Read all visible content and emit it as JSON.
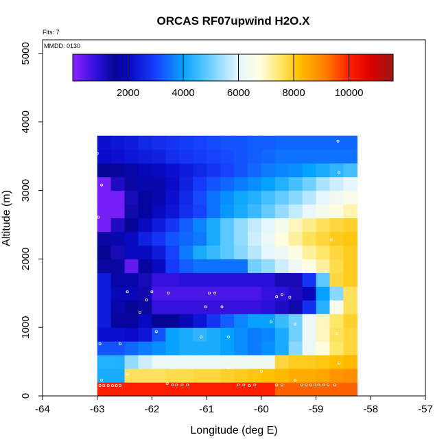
{
  "chart_data": {
    "type": "heatmap",
    "title": "ORCAS RF07upwind H2O.X",
    "xlabel": "Longitude (deg E)",
    "ylabel": "Altitude (m)",
    "xlim": [
      -64,
      -57
    ],
    "ylim": [
      0,
      5200
    ],
    "x_ticks": [
      -64,
      -63,
      -62,
      -61,
      -60,
      -59,
      -58,
      -57
    ],
    "y_ticks": [
      0,
      1000,
      2000,
      3000,
      4000,
      5000
    ],
    "annotations": {
      "flights": "Flts: 7",
      "date": "MMDD: 0130"
    },
    "colorbar": {
      "min": 0,
      "max": 11600,
      "ticks": [
        2000,
        4000,
        6000,
        8000,
        10000
      ],
      "stops": [
        {
          "v": 0,
          "c": "#8b22ff"
        },
        {
          "v": 900,
          "c": "#2a10d8"
        },
        {
          "v": 1500,
          "c": "#050596"
        },
        {
          "v": 2100,
          "c": "#0a0ac8"
        },
        {
          "v": 3000,
          "c": "#1840ff"
        },
        {
          "v": 4000,
          "c": "#05a2ff"
        },
        {
          "v": 5000,
          "c": "#70d0ff"
        },
        {
          "v": 6000,
          "c": "#e6f6ff"
        },
        {
          "v": 6800,
          "c": "#fffce0"
        },
        {
          "v": 7500,
          "c": "#ffe76a"
        },
        {
          "v": 8200,
          "c": "#ffc000"
        },
        {
          "v": 9200,
          "c": "#ff7a00"
        },
        {
          "v": 10000,
          "c": "#ff1f00"
        },
        {
          "v": 10800,
          "c": "#dd0000"
        },
        {
          "v": 11600,
          "c": "#9a1818"
        }
      ]
    },
    "grid": {
      "lon_step": 0.25,
      "alt_step": 200,
      "rows": [
        {
          "alt": 0,
          "lon0": -63.0,
          "values": [
            10000,
            10000,
            10000,
            10000,
            10000,
            10000,
            10000,
            10000,
            10000,
            10000,
            10000,
            10000,
            10000,
            9400,
            9400,
            9400,
            9400,
            9400,
            9400
          ]
        },
        {
          "alt": 200,
          "lon0": -63.0,
          "values": [
            4200,
            4200,
            7600,
            7600,
            7600,
            7700,
            7700,
            7800,
            7800,
            7900,
            8000,
            8100,
            8200,
            8300,
            8500,
            8500,
            8600,
            8800,
            8900
          ]
        },
        {
          "alt": 400,
          "lon0": -63.0,
          "values": [
            4300,
            4300,
            5300,
            5800,
            6200,
            6200,
            6200,
            6200,
            6200,
            6300,
            6300,
            6300,
            6300,
            7800,
            8000,
            8000,
            8100,
            8200,
            8300
          ]
        },
        {
          "alt": 600,
          "lon0": -63.25,
          "values": [
            null,
            3200,
            3200,
            3400,
            3600,
            3800,
            4000,
            4200,
            4200,
            4200,
            4000,
            3800,
            3600,
            3800,
            4200,
            5200,
            6200,
            6800,
            7500,
            7800
          ]
        },
        {
          "alt": 800,
          "lon0": -63.25,
          "values": [
            null,
            2200,
            2200,
            2100,
            2300,
            3200,
            4000,
            4200,
            4400,
            4200,
            4000,
            3800,
            3600,
            3700,
            4200,
            5000,
            6200,
            7000,
            7600,
            7800
          ]
        },
        {
          "alt": 1000,
          "lon0": -63.25,
          "values": [
            null,
            2400,
            1600,
            1600,
            2000,
            1500,
            1500,
            1900,
            2300,
            2800,
            3300,
            3700,
            4000,
            4000,
            4500,
            5000,
            6200,
            7000,
            7500,
            7900
          ]
        },
        {
          "alt": 1200,
          "lon0": -63.25,
          "values": [
            null,
            2400,
            1700,
            1500,
            1400,
            800,
            800,
            800,
            800,
            800,
            800,
            800,
            800,
            900,
            1100,
            1300,
            2700,
            4300,
            6600,
            7600
          ]
        },
        {
          "alt": 1400,
          "lon0": -63.25,
          "values": [
            null,
            2400,
            1900,
            1900,
            1300,
            600,
            600,
            600,
            600,
            600,
            600,
            600,
            600,
            800,
            900,
            1100,
            1900,
            4000,
            5200,
            7600
          ]
        },
        {
          "alt": 1600,
          "lon0": -63.25,
          "values": [
            null,
            2400,
            1700,
            1700,
            1200,
            800,
            800,
            900,
            900,
            900,
            900,
            900,
            900,
            900,
            1200,
            1200,
            2800,
            4800,
            7800,
            8000
          ]
        },
        {
          "alt": 1800,
          "lon0": -63.25,
          "values": [
            null,
            1400,
            1400,
            400,
            1600,
            2000,
            2900,
            3300,
            3500,
            3500,
            3500,
            3500,
            5000,
            5300,
            5800,
            6300,
            6800,
            7200,
            7700,
            8000
          ]
        },
        {
          "alt": 2000,
          "lon0": -63.25,
          "values": [
            null,
            1500,
            1200,
            2000,
            2000,
            2400,
            3000,
            3600,
            4200,
            4500,
            4800,
            5200,
            5600,
            6000,
            6300,
            6700,
            7200,
            7500,
            7800,
            8000
          ]
        },
        {
          "alt": 2200,
          "lon0": -63.0,
          "values": [
            1400,
            1800,
            2000,
            2500,
            2800,
            3200,
            3400,
            3600,
            4200,
            4800,
            5300,
            5800,
            6200,
            6800,
            7200,
            7600,
            7800,
            8000,
            8100
          ]
        },
        {
          "alt": 2400,
          "lon0": -63.0,
          "values": [
            200,
            1100,
            1500,
            2000,
            2400,
            2800,
            3300,
            3700,
            4200,
            4800,
            5300,
            5700,
            6000,
            6500,
            7000,
            7300,
            7600,
            7800,
            7900
          ]
        },
        {
          "alt": 2600,
          "lon0": -63.0,
          "values": [
            200,
            200,
            1300,
            1600,
            2000,
            2300,
            2700,
            3000,
            3500,
            3900,
            4200,
            4500,
            4900,
            5300,
            5700,
            6100,
            6500,
            6800,
            7100
          ]
        },
        {
          "alt": 2800,
          "lon0": -63.0,
          "values": [
            200,
            200,
            1200,
            1600,
            1800,
            2200,
            2600,
            3100,
            3500,
            3800,
            4100,
            4300,
            4600,
            4900,
            5200,
            5600,
            6000,
            6400,
            6600
          ]
        },
        {
          "alt": 3000,
          "lon0": -63.0,
          "values": [
            200,
            1100,
            1400,
            1800,
            1800,
            2100,
            2500,
            2900,
            3200,
            3400,
            3600,
            3800,
            4000,
            4300,
            4600,
            5000,
            5500,
            5800,
            6000
          ]
        },
        {
          "alt": 3200,
          "lon0": -63.0,
          "values": [
            1500,
            1600,
            1700,
            1900,
            2000,
            2200,
            2400,
            2600,
            2800,
            3000,
            3200,
            3400,
            3600,
            3700,
            3800,
            4000,
            4200,
            4400,
            4600
          ]
        },
        {
          "alt": 3400,
          "lon0": -63.0,
          "values": [
            2100,
            2200,
            2300,
            2400,
            2500,
            2700,
            2800,
            2900,
            3000,
            3100,
            3200,
            3300,
            3400,
            3500,
            3500,
            3500,
            3500,
            3500,
            3500
          ]
        },
        {
          "alt": 3600,
          "lon0": -63.0,
          "values": [
            2200,
            2300,
            2400,
            2600,
            2700,
            2800,
            2900,
            3000,
            3100,
            3200,
            3200,
            3300,
            3300,
            3400,
            3400,
            3400,
            3400,
            3400,
            3400
          ]
        }
      ]
    },
    "samples": [
      [
        -63.02,
        100
      ],
      [
        -62.95,
        150
      ],
      [
        -62.88,
        150
      ],
      [
        -62.8,
        150
      ],
      [
        -62.72,
        150
      ],
      [
        -62.65,
        150
      ],
      [
        -62.58,
        150
      ],
      [
        -62.92,
        230
      ],
      [
        -61.72,
        180
      ],
      [
        -61.62,
        160
      ],
      [
        -61.55,
        160
      ],
      [
        -61.45,
        160
      ],
      [
        -61.35,
        160
      ],
      [
        -60.42,
        160
      ],
      [
        -60.32,
        160
      ],
      [
        -60.22,
        150
      ],
      [
        -60.12,
        160
      ],
      [
        -59.72,
        160
      ],
      [
        -59.62,
        160
      ],
      [
        -59.38,
        230
      ],
      [
        -59.26,
        160
      ],
      [
        -59.18,
        160
      ],
      [
        -59.1,
        160
      ],
      [
        -59.02,
        160
      ],
      [
        -58.95,
        160
      ],
      [
        -58.86,
        160
      ],
      [
        -58.78,
        160
      ],
      [
        -58.66,
        160
      ],
      [
        -58.58,
        480
      ],
      [
        -62.45,
        320
      ],
      [
        -60.6,
        410
      ],
      [
        -60.0,
        360
      ],
      [
        -62.95,
        760
      ],
      [
        -62.58,
        760
      ],
      [
        -61.92,
        940
      ],
      [
        -61.1,
        860
      ],
      [
        -60.6,
        860
      ],
      [
        -59.82,
        1080
      ],
      [
        -59.38,
        1050
      ],
      [
        -58.62,
        910
      ],
      [
        -63.15,
        1220
      ],
      [
        -62.22,
        1220
      ],
      [
        -61.7,
        1500
      ],
      [
        -62.1,
        1400
      ],
      [
        -62.0,
        1520
      ],
      [
        -61.02,
        1300
      ],
      [
        -60.95,
        1500
      ],
      [
        -60.85,
        1500
      ],
      [
        -60.72,
        1300
      ],
      [
        -59.72,
        1450
      ],
      [
        -59.62,
        1480
      ],
      [
        -59.48,
        1440
      ],
      [
        -58.72,
        1380
      ],
      [
        -63.1,
        1680
      ],
      [
        -62.45,
        1520
      ],
      [
        -63.22,
        2150
      ],
      [
        -62.98,
        2610
      ],
      [
        -62.92,
        3080
      ],
      [
        -63.0,
        3540
      ],
      [
        -58.72,
        2280
      ],
      [
        -58.82,
        1820
      ],
      [
        -58.58,
        3260
      ],
      [
        -58.6,
        3720
      ]
    ]
  }
}
